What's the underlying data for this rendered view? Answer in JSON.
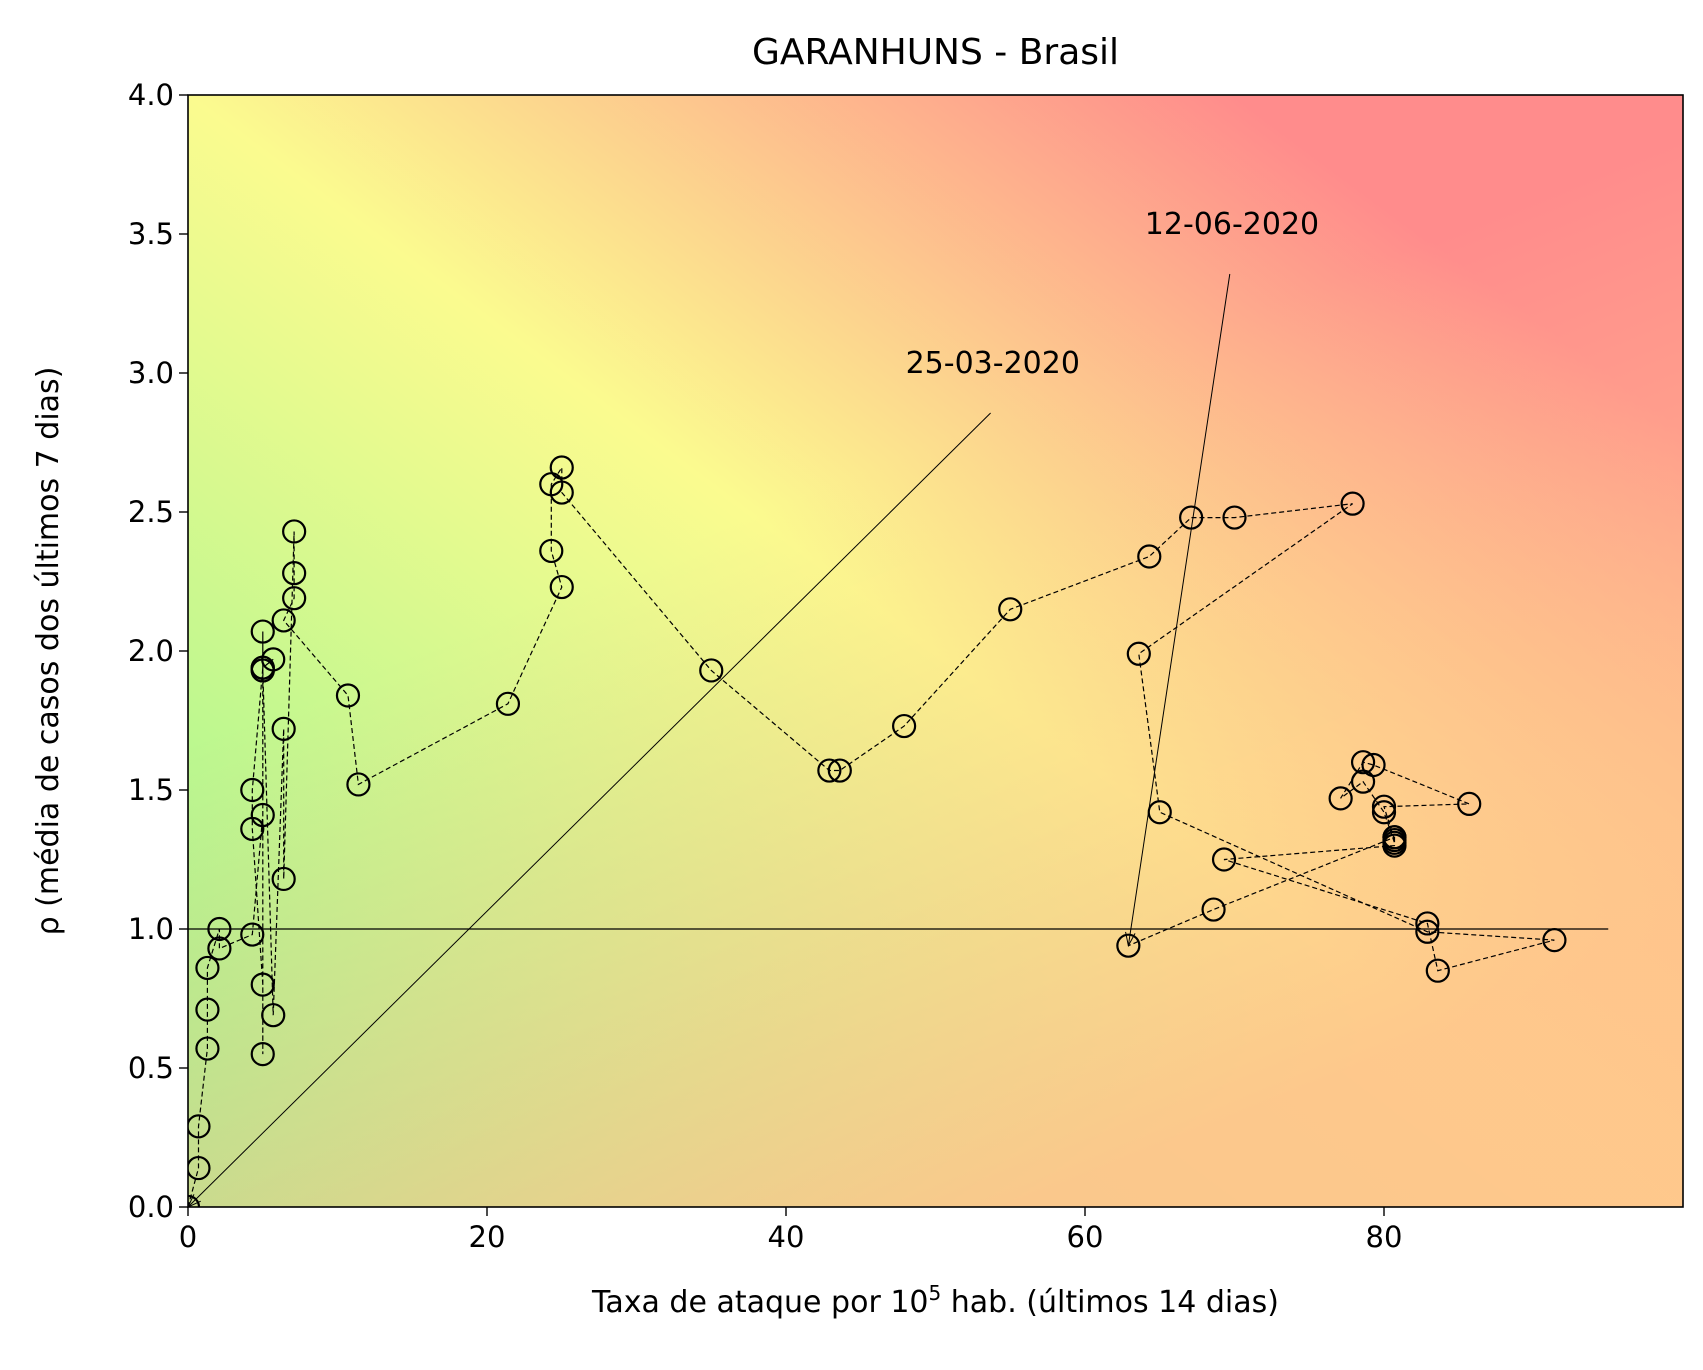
{
  "chart_data": {
    "type": "scatter",
    "title": "GARANHUNS - Brasil",
    "xlabel_prefix": "Taxa de ataque por 10",
    "xlabel_sup": "5",
    "xlabel_suffix": " hab. (últimos 14 dias)",
    "ylabel": "ρ (média de casos dos últimos 7 dias)",
    "xlim": [
      0,
      100
    ],
    "ylim": [
      0,
      4
    ],
    "xticks": [
      0,
      20,
      40,
      60,
      80
    ],
    "yticks": [
      0.0,
      0.5,
      1.0,
      1.5,
      2.0,
      2.5,
      3.0,
      3.5,
      4.0
    ],
    "ytick_labels": [
      "0.0",
      "0.5",
      "1.0",
      "1.5",
      "2.0",
      "2.5",
      "3.0",
      "3.5",
      "4.0"
    ],
    "reference_line": {
      "y": 1.0,
      "x_range": [
        0,
        95
      ]
    },
    "background_colors": {
      "low": "#8ff58f",
      "mid": "#fbfb8f",
      "high": "#ff8c8c",
      "corner": "#ffc38c"
    },
    "marker_edge_color": "#000000",
    "series": [
      {
        "x": [
          0.0,
          0.7,
          0.7,
          1.3,
          1.3,
          1.3,
          2.1,
          2.1,
          4.3,
          5.0,
          5.0,
          5.7,
          5.0,
          4.3,
          4.3,
          5.0,
          5.0,
          5.0,
          5.0,
          5.0,
          5.7,
          6.4,
          6.4,
          7.1,
          7.1,
          7.1,
          6.4,
          10.7,
          11.4,
          21.4,
          25.0,
          24.3,
          24.3,
          25.0,
          25.0,
          35.0,
          42.9,
          43.6,
          47.9,
          55.0,
          64.3,
          67.1,
          70.0,
          77.9,
          63.6,
          65.0,
          82.9,
          91.4,
          83.6,
          82.9,
          69.3,
          80.7,
          80.7,
          80.7,
          80.0,
          85.7,
          79.3,
          78.6,
          77.1,
          78.6,
          80.0,
          80.7,
          80.7,
          68.6,
          62.9
        ],
        "y": [
          0.0,
          0.14,
          0.29,
          0.57,
          0.71,
          0.86,
          1.0,
          0.93,
          0.98,
          1.41,
          1.94,
          1.97,
          1.94,
          1.5,
          1.36,
          0.8,
          0.55,
          2.07,
          1.93,
          1.93,
          0.69,
          1.72,
          1.18,
          2.43,
          2.28,
          2.19,
          2.11,
          1.84,
          1.52,
          1.81,
          2.23,
          2.36,
          2.6,
          2.66,
          2.57,
          1.93,
          1.57,
          1.57,
          1.73,
          2.15,
          2.34,
          2.48,
          2.48,
          2.53,
          1.99,
          1.42,
          0.99,
          0.96,
          0.85,
          1.02,
          1.25,
          1.3,
          1.33,
          1.32,
          1.44,
          1.45,
          1.59,
          1.6,
          1.47,
          1.53,
          1.42,
          1.31,
          1.33,
          1.07,
          0.94
        ]
      }
    ],
    "annotations": [
      {
        "text": "25-03-2020",
        "x": 0.0,
        "y": 0.0,
        "text_x": 48.0,
        "text_y": 3.0
      },
      {
        "text": "12-06-2020",
        "x": 62.9,
        "y": 0.94,
        "text_x": 64.0,
        "text_y": 3.5
      }
    ]
  }
}
